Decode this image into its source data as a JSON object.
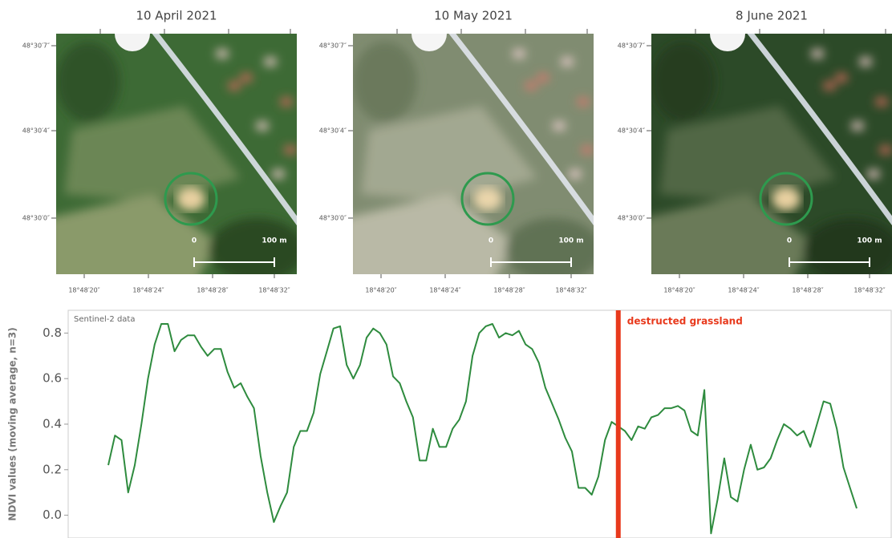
{
  "panels": [
    {
      "title": "10 April 2021"
    },
    {
      "title": "10 May 2021"
    },
    {
      "title": "8 June 2021"
    }
  ],
  "lat_labels": [
    "48°30′7″",
    "48°30′4″",
    "48°30′0″"
  ],
  "lon_labels": [
    "18°48′20″",
    "18°48′24″",
    "18°48′28″",
    "18°48′32″"
  ],
  "scale_labels": [
    "0",
    "100 m"
  ],
  "chart_data": {
    "type": "line",
    "ylabel": "NDVI values (moving average, n=3)",
    "source_label": "Sentinel-2 data",
    "ylim": [
      -0.1,
      0.9
    ],
    "yticks": [
      {
        "value": 0,
        "label": "0.0"
      },
      0.2,
      0.4,
      0.6,
      0.8
    ],
    "series": [
      {
        "name": "NDVI",
        "color": "#2e8b3e",
        "values": [
          0.22,
          0.35,
          0.33,
          0.1,
          0.22,
          0.4,
          0.6,
          0.75,
          0.84,
          0.84,
          0.72,
          0.77,
          0.79,
          0.79,
          0.74,
          0.7,
          0.73,
          0.73,
          0.63,
          0.56,
          0.58,
          0.52,
          0.47,
          0.26,
          0.1,
          -0.03,
          0.04,
          0.1,
          0.3,
          0.37,
          0.37,
          0.45,
          0.62,
          0.72,
          0.82,
          0.83,
          0.66,
          0.6,
          0.66,
          0.78,
          0.82,
          0.8,
          0.75,
          0.61,
          0.58,
          0.5,
          0.43,
          0.24,
          0.24,
          0.38,
          0.3,
          0.3,
          0.38,
          0.42,
          0.5,
          0.7,
          0.8,
          0.83,
          0.84,
          0.78,
          0.8,
          0.79,
          0.81,
          0.75,
          0.73,
          0.67,
          0.56,
          0.49,
          0.42,
          0.34,
          0.28,
          0.12,
          0.12,
          0.09,
          0.17,
          0.33,
          0.41,
          0.39,
          0.37,
          0.33,
          0.39,
          0.38,
          0.43,
          0.44,
          0.47,
          0.47,
          0.48,
          0.46,
          0.37,
          0.35,
          0.55,
          -0.08,
          0.07,
          0.25,
          0.08,
          0.06,
          0.2,
          0.31,
          0.2,
          0.21,
          0.25,
          0.33,
          0.4,
          0.38,
          0.35,
          0.37,
          0.3,
          0.4,
          0.5,
          0.49,
          0.38,
          0.21,
          0.12,
          0.03
        ]
      }
    ],
    "annotation": {
      "text": "destructed grassland",
      "x": 77,
      "color": "#e8391c"
    }
  }
}
